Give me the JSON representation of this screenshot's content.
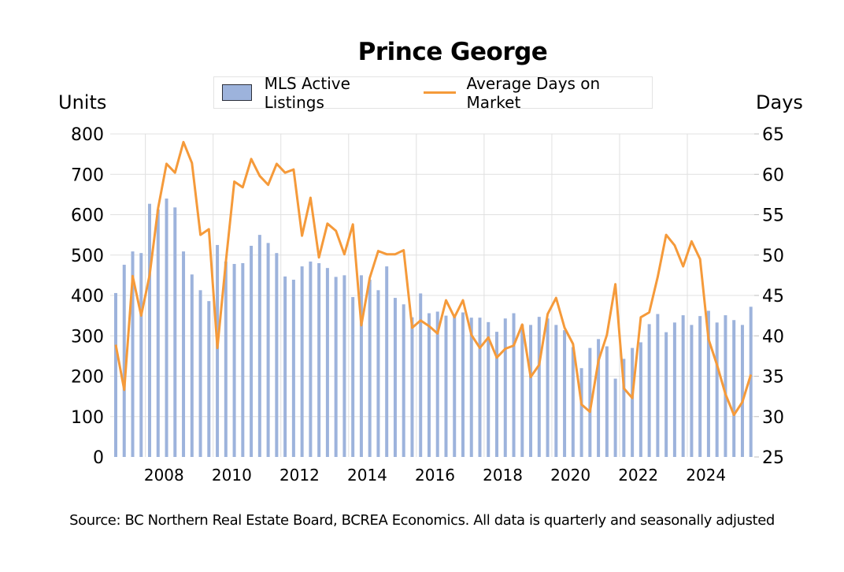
{
  "chart_data": {
    "type": "bar",
    "title": "Prince George",
    "legend_position": "top-center",
    "grid": true,
    "ylabel": "Units",
    "y2label": "Days",
    "ylim": [
      0,
      800
    ],
    "y2lim": [
      25,
      65
    ],
    "yticks": [
      "0",
      "100",
      "200",
      "300",
      "400",
      "500",
      "600",
      "700",
      "800"
    ],
    "y2ticks": [
      "25",
      "30",
      "35",
      "40",
      "45",
      "50",
      "55",
      "60",
      "65"
    ],
    "xticks": [
      "2008",
      "2010",
      "2012",
      "2014",
      "2016",
      "2018",
      "2020",
      "2022",
      "2024"
    ],
    "x_start": "2007 Q1",
    "x_end": "2025 Q4",
    "frequency": "quarterly",
    "series": [
      {
        "name": "MLS Active Listings",
        "type": "bar",
        "axis": "left",
        "color": "#9DB3DC",
        "values": [
          406,
          476,
          509,
          505,
          627,
          613,
          640,
          618,
          509,
          452,
          413,
          386,
          525,
          484,
          478,
          480,
          523,
          550,
          530,
          505,
          447,
          439,
          472,
          484,
          480,
          468,
          446,
          450,
          396,
          450,
          439,
          413,
          472,
          394,
          378,
          346,
          405,
          356,
          360,
          350,
          347,
          358,
          345,
          345,
          334,
          310,
          343,
          356,
          328,
          327,
          347,
          343,
          327,
          314,
          272,
          220,
          270,
          292,
          274,
          194,
          243,
          270,
          284,
          329,
          354,
          309,
          333,
          351,
          327,
          349,
          362,
          333,
          351,
          339,
          327,
          372
        ]
      },
      {
        "name": "Average Days on Market",
        "type": "line",
        "axis": "right",
        "color": "#F59A3A",
        "values": [
          38.9,
          33.3,
          47.4,
          42.5,
          47.5,
          55.8,
          61.3,
          60.2,
          64.0,
          61.4,
          52.5,
          53.2,
          38.5,
          49.1,
          59.1,
          58.4,
          61.9,
          59.8,
          58.7,
          61.3,
          60.2,
          60.6,
          52.4,
          57.1,
          49.7,
          53.9,
          53.0,
          50.1,
          53.8,
          41.3,
          47.2,
          50.5,
          50.1,
          50.1,
          50.6,
          41.0,
          41.9,
          41.2,
          40.3,
          44.4,
          42.3,
          44.4,
          40.1,
          38.5,
          39.8,
          37.3,
          38.4,
          38.8,
          41.4,
          34.9,
          36.4,
          42.7,
          44.7,
          41.0,
          39.0,
          31.5,
          30.6,
          36.9,
          40.1,
          46.4,
          33.5,
          32.3,
          42.3,
          42.9,
          47.3,
          52.5,
          51.2,
          48.6,
          51.7,
          49.5,
          39.6,
          36.4,
          32.8,
          30.2,
          31.8,
          35.2
        ]
      }
    ],
    "source": "Source: BC Northern Real Estate Board, BCREA Economics. All data is quarterly and seasonally adjusted"
  }
}
